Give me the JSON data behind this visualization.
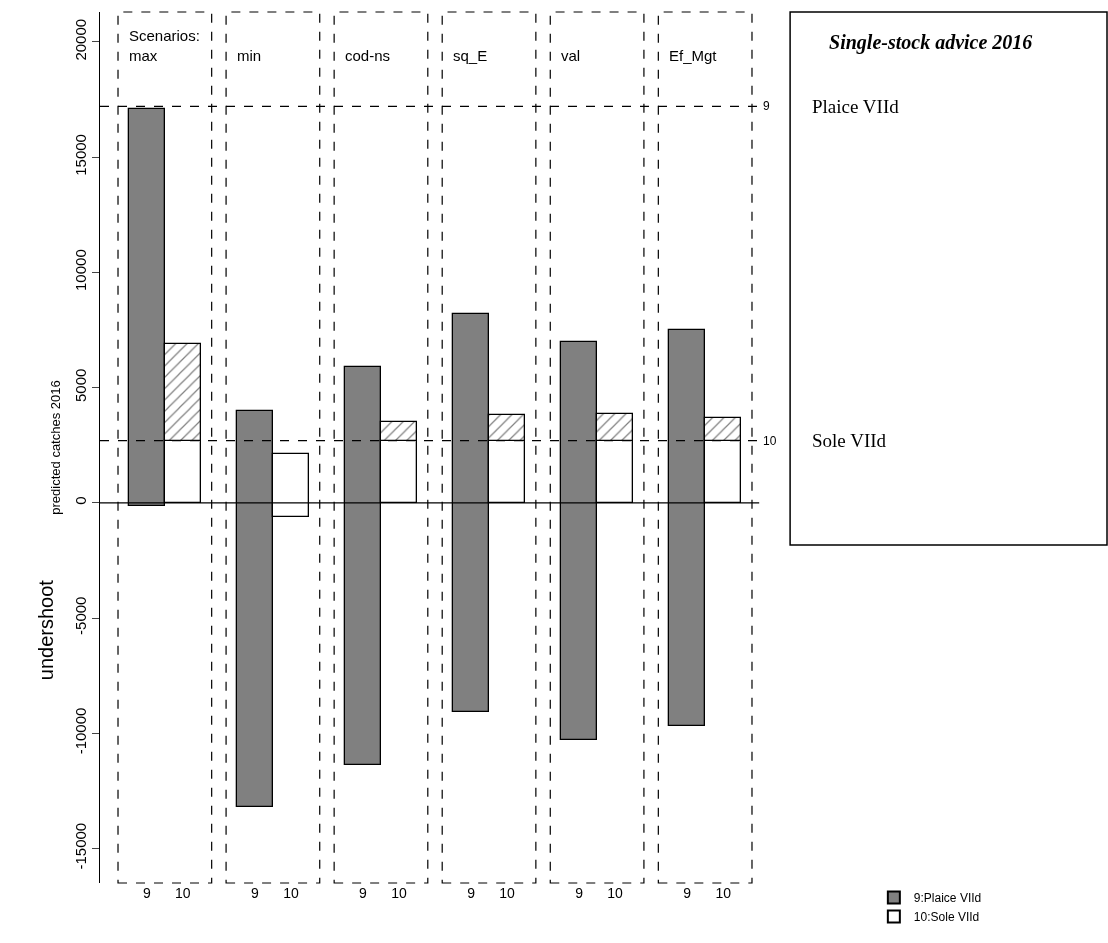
{
  "chart_data": {
    "type": "bar",
    "title": "Single-stock advice 2016",
    "ylabel": "predicted catches 2016",
    "categories": [
      "9",
      "10",
      "9",
      "10",
      "9",
      "10",
      "9",
      "10",
      "9",
      "10",
      "9",
      "10"
    ],
    "series": [
      {
        "name": "9:Plaice VIId",
        "color": "#808080",
        "base": [
          -150,
          null,
          -13200,
          null,
          -11400,
          null,
          -9100,
          null,
          -10300,
          null,
          -9700,
          null
        ],
        "values": [
          17250,
          null,
          17200,
          null,
          17300,
          null,
          17300,
          null,
          17300,
          null,
          17200,
          null
        ]
      },
      {
        "name": "10:Sole VIId",
        "color": "#ffffff",
        "base": [
          null,
          0,
          null,
          -600,
          null,
          0,
          null,
          0,
          null,
          0,
          null,
          0
        ],
        "values": [
          null,
          2700,
          null,
          2700,
          null,
          2700,
          null,
          2700,
          null,
          2700,
          null,
          2700
        ]
      },
      {
        "color": "#000000",
        "base": [
          null,
          2700,
          null,
          null,
          null,
          2700,
          null,
          2700,
          null,
          2700,
          null,
          2700
        ],
        "values": [
          null,
          4200,
          null,
          null,
          null,
          800,
          null,
          1100,
          null,
          1150,
          null,
          1000
        ]
      }
    ],
    "annotations": [
      "Scenarios:",
      "max",
      "min",
      "cod-ns",
      "sq_E",
      "val",
      "Ef_Mgt",
      "undershoot",
      "Plaice VIId",
      "Sole VIId",
      "9",
      "10"
    ],
    "ref_lines": [
      {
        "axis": "y",
        "value": 17200,
        "line_style": "dashed"
      },
      {
        "axis": "y",
        "value": 2700,
        "line_style": "dashed"
      },
      {
        "axis": "y",
        "value": 0,
        "line_style": "solid"
      }
    ],
    "ylim": [
      -16500,
      21300
    ],
    "yticks": [
      -15000,
      -10000,
      -5000,
      0,
      5000,
      10000,
      15000,
      20000
    ],
    "legend": "bottom right"
  }
}
